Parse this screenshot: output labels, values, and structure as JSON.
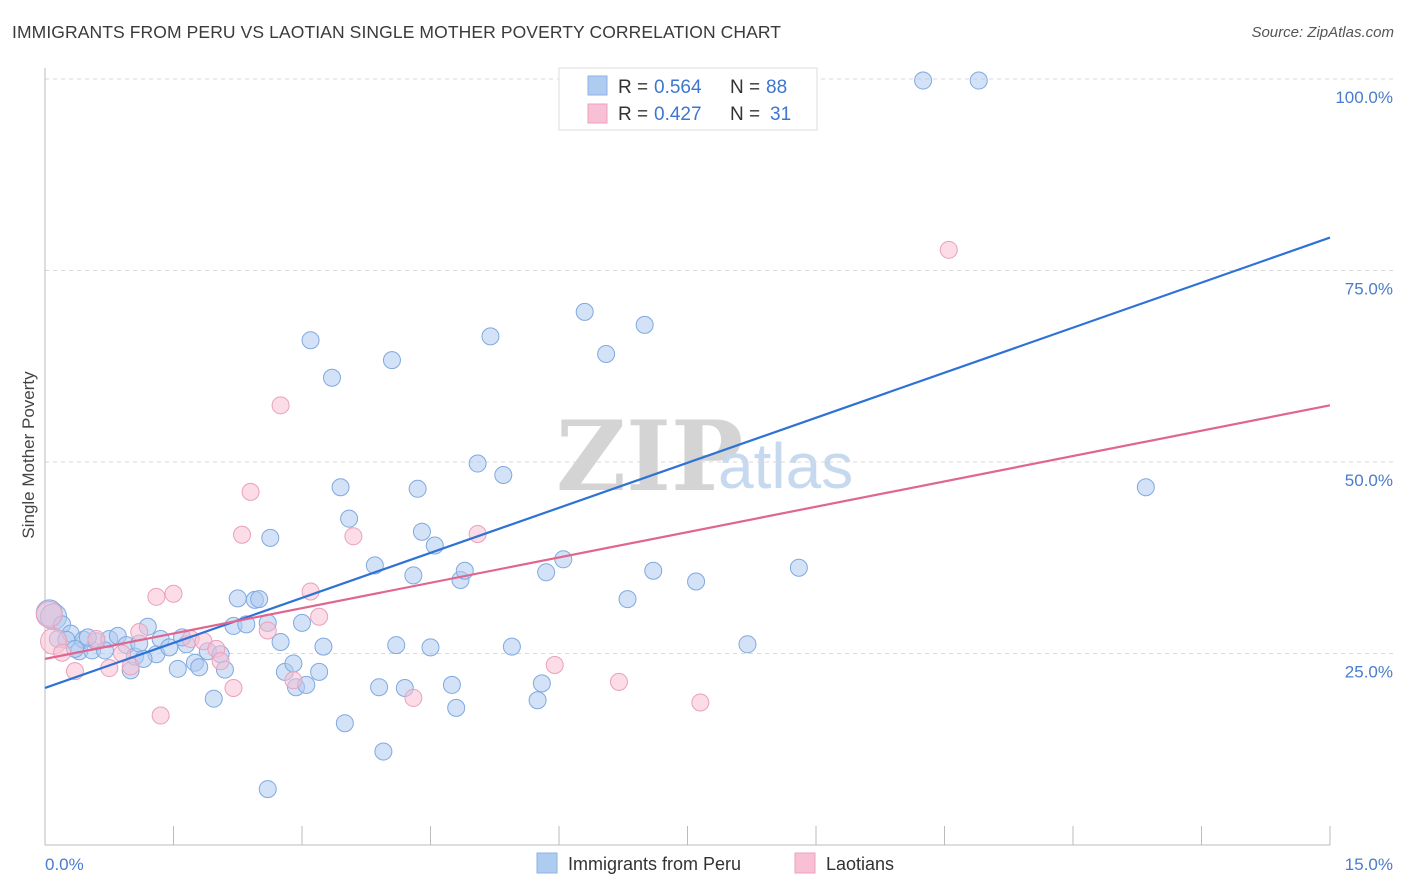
{
  "header": {
    "title": "IMMIGRANTS FROM PERU VS LAOTIAN SINGLE MOTHER POVERTY CORRELATION CHART",
    "source": "Source: ZipAtlas.com"
  },
  "watermark": {
    "zip": "ZIP",
    "atlas": "atlas"
  },
  "legend": {
    "series": [
      {
        "r_label": "R =",
        "r_value": "0.564",
        "n_label": "N =",
        "n_value": "88"
      },
      {
        "r_label": "R =",
        "r_value": "0.427",
        "n_label": "N =",
        "n_value": "31"
      }
    ]
  },
  "chart_data": {
    "type": "scatter",
    "title": "IMMIGRANTS FROM PERU VS LAOTIAN SINGLE MOTHER POVERTY CORRELATION CHART",
    "xlabel": "",
    "ylabel": "Single Mother Poverty",
    "xlim": [
      0,
      15
    ],
    "ylim": [
      0,
      100
    ],
    "x_tick_labels": [
      "0.0%",
      "15.0%"
    ],
    "y_ticks": [
      25,
      50,
      75,
      100
    ],
    "y_tick_labels": [
      "25.0%",
      "50.0%",
      "75.0%",
      "100.0%"
    ],
    "grid": true,
    "legend_position": "top-center",
    "colors": {
      "peru": "#aecbf0",
      "peru_line": "#2f72d6",
      "laotians": "#f7c0d4",
      "laotians_line": "#e0658f"
    },
    "series": [
      {
        "name": "Immigrants from Peru",
        "r": 0.564,
        "n": 88,
        "trend": {
          "x": [
            0,
            15
          ],
          "y": [
            20.5,
            79.3
          ]
        },
        "points": [
          [
            0.05,
            30.3
          ],
          [
            0.1,
            29.8
          ],
          [
            0.2,
            28.8
          ],
          [
            0.15,
            26.9
          ],
          [
            0.3,
            27.6
          ],
          [
            0.4,
            25.3
          ],
          [
            0.45,
            26.8
          ],
          [
            0.55,
            25.4
          ],
          [
            0.6,
            26.6
          ],
          [
            0.75,
            26.9
          ],
          [
            0.85,
            27.3
          ],
          [
            0.95,
            26.1
          ],
          [
            1.0,
            22.8
          ],
          [
            1.05,
            24.6
          ],
          [
            1.1,
            26.3
          ],
          [
            1.2,
            28.5
          ],
          [
            1.3,
            24.9
          ],
          [
            1.35,
            26.9
          ],
          [
            1.45,
            25.8
          ],
          [
            1.55,
            23.0
          ],
          [
            1.65,
            26.2
          ],
          [
            1.75,
            23.8
          ],
          [
            1.8,
            23.2
          ],
          [
            1.9,
            25.3
          ],
          [
            1.97,
            19.1
          ],
          [
            2.05,
            24.9
          ],
          [
            2.1,
            22.9
          ],
          [
            2.2,
            28.6
          ],
          [
            2.25,
            32.2
          ],
          [
            2.35,
            28.8
          ],
          [
            2.45,
            32.0
          ],
          [
            2.5,
            32.1
          ],
          [
            2.6,
            29.0
          ],
          [
            2.63,
            40.1
          ],
          [
            2.75,
            26.5
          ],
          [
            2.8,
            22.6
          ],
          [
            2.9,
            23.7
          ],
          [
            2.93,
            20.6
          ],
          [
            3.0,
            29.0
          ],
          [
            3.05,
            20.9
          ],
          [
            3.1,
            65.9
          ],
          [
            3.2,
            22.6
          ],
          [
            3.25,
            25.9
          ],
          [
            3.35,
            61.0
          ],
          [
            3.45,
            46.7
          ],
          [
            3.5,
            15.9
          ],
          [
            3.55,
            42.6
          ],
          [
            3.85,
            36.5
          ],
          [
            3.9,
            20.6
          ],
          [
            3.95,
            12.2
          ],
          [
            4.05,
            63.3
          ],
          [
            4.1,
            26.1
          ],
          [
            4.2,
            20.5
          ],
          [
            4.3,
            35.2
          ],
          [
            4.35,
            46.5
          ],
          [
            4.4,
            40.9
          ],
          [
            4.5,
            25.8
          ],
          [
            4.55,
            39.1
          ],
          [
            4.75,
            20.9
          ],
          [
            4.8,
            17.9
          ],
          [
            4.85,
            34.6
          ],
          [
            4.9,
            35.8
          ],
          [
            5.05,
            49.8
          ],
          [
            5.2,
            66.4
          ],
          [
            5.35,
            48.3
          ],
          [
            5.45,
            25.9
          ],
          [
            5.75,
            18.9
          ],
          [
            5.8,
            21.1
          ],
          [
            5.85,
            35.6
          ],
          [
            6.05,
            37.3
          ],
          [
            6.3,
            69.6
          ],
          [
            6.55,
            64.1
          ],
          [
            6.8,
            32.1
          ],
          [
            7.0,
            67.9
          ],
          [
            7.1,
            35.8
          ],
          [
            7.6,
            34.4
          ],
          [
            8.2,
            26.2
          ],
          [
            8.8,
            36.2
          ],
          [
            10.25,
            99.8
          ],
          [
            10.9,
            99.8
          ],
          [
            12.85,
            46.7
          ],
          [
            2.6,
            7.3
          ],
          [
            1.6,
            27.1
          ],
          [
            0.25,
            26.8
          ],
          [
            0.7,
            25.4
          ],
          [
            1.15,
            24.3
          ],
          [
            0.5,
            27.1
          ],
          [
            0.35,
            25.6
          ]
        ]
      },
      {
        "name": "Laotians",
        "r": 0.427,
        "n": 31,
        "trend": {
          "x": [
            0,
            15
          ],
          "y": [
            24.3,
            57.4
          ]
        },
        "points": [
          [
            0.05,
            30.1
          ],
          [
            0.1,
            26.6
          ],
          [
            0.35,
            22.7
          ],
          [
            0.6,
            26.9
          ],
          [
            0.75,
            23.1
          ],
          [
            0.9,
            25.0
          ],
          [
            1.0,
            23.3
          ],
          [
            1.1,
            27.8
          ],
          [
            1.3,
            32.4
          ],
          [
            1.35,
            16.9
          ],
          [
            1.5,
            32.8
          ],
          [
            1.7,
            26.9
          ],
          [
            1.85,
            26.6
          ],
          [
            2.0,
            25.6
          ],
          [
            2.05,
            24.0
          ],
          [
            2.2,
            20.5
          ],
          [
            2.3,
            40.5
          ],
          [
            2.4,
            46.1
          ],
          [
            2.6,
            28.0
          ],
          [
            2.75,
            57.4
          ],
          [
            2.9,
            21.5
          ],
          [
            3.1,
            33.1
          ],
          [
            3.2,
            29.8
          ],
          [
            3.6,
            40.3
          ],
          [
            4.3,
            19.2
          ],
          [
            5.05,
            40.6
          ],
          [
            5.95,
            23.5
          ],
          [
            6.7,
            21.3
          ],
          [
            7.65,
            18.6
          ],
          [
            10.55,
            77.7
          ],
          [
            0.2,
            25.1
          ]
        ]
      }
    ]
  },
  "bottom_legend": {
    "items": [
      {
        "label": "Immigrants from Peru"
      },
      {
        "label": "Laotians"
      }
    ]
  }
}
